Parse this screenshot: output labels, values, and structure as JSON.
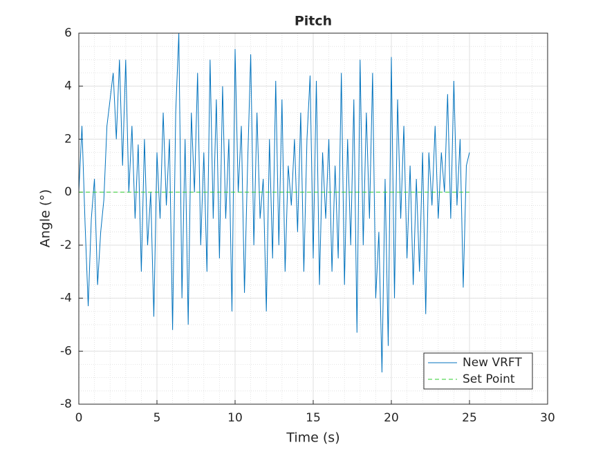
{
  "chart_data": {
    "type": "line",
    "title": "Pitch",
    "x_label": "Time (s)",
    "y_label": "Angle (°)",
    "xlim": [
      0,
      30
    ],
    "ylim": [
      -8,
      6
    ],
    "xticks": [
      0,
      5,
      10,
      15,
      20,
      25,
      30
    ],
    "yticks": [
      -8,
      -6,
      -4,
      -2,
      0,
      2,
      4,
      6
    ],
    "grid": true,
    "minor_grid": true,
    "legend": "lower right",
    "series": [
      {
        "name": "New VRFT",
        "color": "#0072bd",
        "line_style": "solid",
        "x": [
          0,
          0.2,
          0.4,
          0.6,
          0.8,
          1,
          1.2,
          1.4,
          1.6,
          1.8,
          2,
          2.2,
          2.4,
          2.6,
          2.8,
          3,
          3.2,
          3.4,
          3.6,
          3.8,
          4,
          4.2,
          4.4,
          4.6,
          4.8,
          5,
          5.2,
          5.4,
          5.6,
          5.8,
          6,
          6.2,
          6.4,
          6.6,
          6.8,
          7,
          7.2,
          7.4,
          7.6,
          7.8,
          8,
          8.2,
          8.4,
          8.6,
          8.8,
          9,
          9.2,
          9.4,
          9.6,
          9.8,
          10,
          10.2,
          10.4,
          10.6,
          10.8,
          11,
          11.2,
          11.4,
          11.6,
          11.8,
          12,
          12.2,
          12.4,
          12.6,
          12.8,
          13,
          13.2,
          13.4,
          13.6,
          13.8,
          14,
          14.2,
          14.4,
          14.6,
          14.8,
          15,
          15.2,
          15.4,
          15.6,
          15.8,
          16,
          16.2,
          16.4,
          16.6,
          16.8,
          17,
          17.2,
          17.4,
          17.6,
          17.8,
          18,
          18.2,
          18.4,
          18.6,
          18.8,
          19,
          19.2,
          19.4,
          19.6,
          19.8,
          20,
          20.2,
          20.4,
          20.6,
          20.8,
          21,
          21.2,
          21.4,
          21.6,
          21.8,
          22,
          22.2,
          22.4,
          22.6,
          22.8,
          23,
          23.2,
          23.4,
          23.6,
          23.8,
          24,
          24.2,
          24.4,
          24.6,
          24.8,
          25
        ],
        "values": [
          0,
          2.5,
          -1.2,
          -4.3,
          -1,
          0.5,
          -3.5,
          -1.5,
          -0.3,
          2.5,
          3.5,
          4.5,
          2,
          5,
          1,
          5,
          0,
          2.5,
          -1,
          1.8,
          -3,
          2,
          -2,
          0,
          -4.7,
          1.5,
          -1,
          3,
          -0.5,
          2,
          -5.2,
          3,
          6,
          -4,
          2,
          -5,
          3,
          0,
          4.5,
          -2,
          1.5,
          -3,
          5,
          -1,
          3.5,
          -2.5,
          4,
          -1,
          2,
          -4.5,
          5.4,
          0,
          2.5,
          -3.8,
          1,
          5.2,
          -2,
          3,
          -1,
          0.5,
          -4.5,
          2,
          -2.5,
          4.2,
          -2,
          3.5,
          -3,
          1,
          -0.5,
          2,
          -1.5,
          3,
          -3,
          2,
          4.4,
          -2.5,
          4.2,
          -3.5,
          1.5,
          -1,
          2,
          -3,
          1,
          -2.5,
          4.5,
          -3.5,
          2,
          -2,
          3.5,
          -5.3,
          5,
          -2,
          3,
          -1,
          4.5,
          -4,
          -1.5,
          -6.8,
          0.5,
          -5.8,
          5.1,
          -4,
          3.5,
          -1,
          2.5,
          -2.5,
          1,
          -3.5,
          0.5,
          -3,
          1.5,
          -4.6,
          1.5,
          -0.5,
          2.5,
          -1,
          1.5,
          0,
          3.7,
          -1,
          4.2,
          -0.5,
          2,
          -3.6,
          1,
          1.5
        ]
      },
      {
        "name": "Set Point",
        "color": "#2dcc2d",
        "line_style": "dashed",
        "x": [
          0,
          25
        ],
        "values": [
          0,
          0
        ]
      }
    ]
  }
}
